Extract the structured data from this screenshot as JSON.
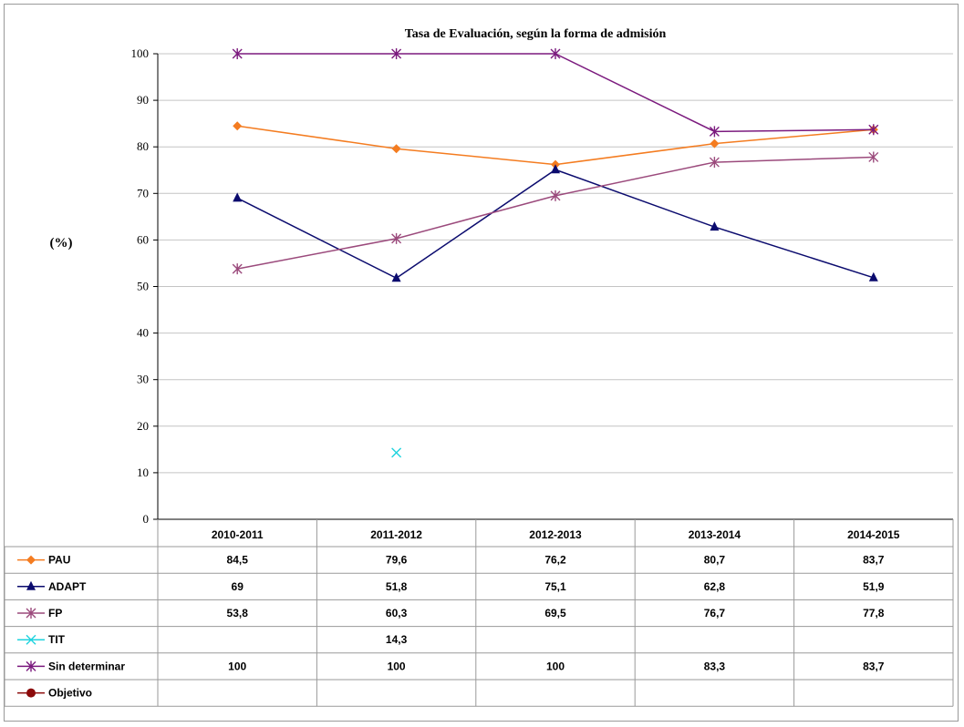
{
  "chart_data": {
    "type": "line",
    "title": "Tasa de Evaluación, según la forma de admisión",
    "ylabel": "(%)",
    "xlabel": "",
    "ylim": [
      0,
      100
    ],
    "yticks": [
      0,
      10,
      20,
      30,
      40,
      50,
      60,
      70,
      80,
      90,
      100
    ],
    "grid": true,
    "legend": "data-table-below",
    "categories": [
      "2010-2011",
      "2011-2012",
      "2012-2013",
      "2013-2014",
      "2014-2015"
    ],
    "series": [
      {
        "name": "PAU",
        "color": "#F47C20",
        "marker": "diamond",
        "values": [
          84.5,
          79.6,
          76.2,
          80.7,
          83.7
        ],
        "labels": [
          "84,5",
          "79,6",
          "76,2",
          "80,7",
          "83,7"
        ]
      },
      {
        "name": "ADAPT",
        "color": "#0B0B6E",
        "marker": "triangle",
        "values": [
          69,
          51.8,
          75.1,
          62.8,
          51.9
        ],
        "labels": [
          "69",
          "51,8",
          "75,1",
          "62,8",
          "51,9"
        ]
      },
      {
        "name": "FP",
        "color": "#9B4A7C",
        "marker": "asterisk",
        "values": [
          53.8,
          60.3,
          69.5,
          76.7,
          77.8
        ],
        "labels": [
          "53,8",
          "60,3",
          "69,5",
          "76,7",
          "77,8"
        ]
      },
      {
        "name": "TIT",
        "color": "#1FD3DE",
        "marker": "x",
        "values": [
          null,
          14.3,
          null,
          null,
          null
        ],
        "labels": [
          "",
          "14,3",
          "",
          "",
          ""
        ]
      },
      {
        "name": "Sin determinar",
        "color": "#7B1A7E",
        "marker": "asterisk",
        "values": [
          100,
          100,
          100,
          83.3,
          83.7
        ],
        "labels": [
          "100",
          "100",
          "100",
          "83,3",
          "83,7"
        ]
      },
      {
        "name": "Objetivo",
        "color": "#8B0A0A",
        "marker": "circle",
        "values": [
          null,
          null,
          null,
          null,
          null
        ],
        "labels": [
          "",
          "",
          "",
          "",
          ""
        ]
      }
    ]
  }
}
